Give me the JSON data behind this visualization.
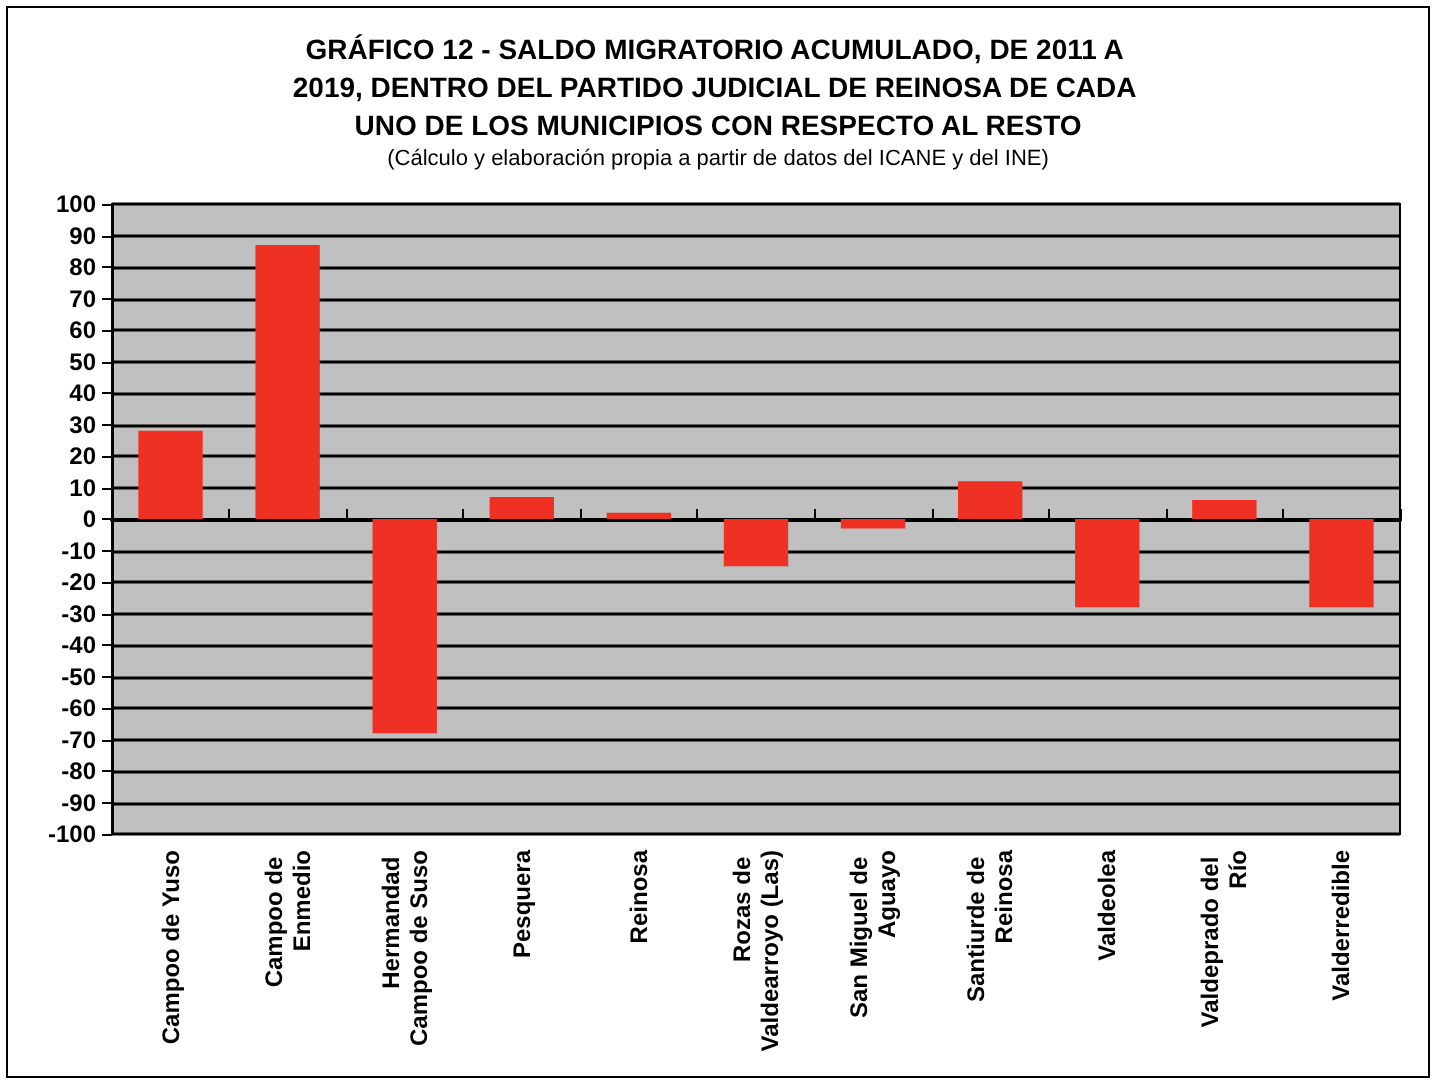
{
  "chart_data": {
    "type": "bar",
    "title": "GRÁFICO 12 - SALDO MIGRATORIO ACUMULADO, DE 2011 A 2019, DENTRO DEL PARTIDO JUDICIAL DE REINOSA DE CADA UNO DE LOS MUNICIPIOS CON RESPECTO AL RESTO",
    "subtitle": "(Cálculo y elaboración propia a partir de datos del ICANE y del INE)",
    "categories": [
      "Campoo de Yuso",
      "Campoo de Enmedio",
      "Hermandad Campoo de Suso",
      "Pesquera",
      "Reinosa",
      "Rozas de Valdearroyo (Las)",
      "San Miguel de Aguayo",
      "Santiurde de Reinosa",
      "Valdeolea",
      "Valdeprado del Río",
      "Valderredible"
    ],
    "values": [
      28,
      87,
      -68,
      7,
      2,
      -15,
      -3,
      12,
      -28,
      6,
      -28
    ],
    "color": "#ee3124",
    "ylim": [
      -100,
      100
    ],
    "yticks": [
      -100,
      -90,
      -80,
      -70,
      -60,
      -50,
      -40,
      -30,
      -20,
      -10,
      0,
      10,
      20,
      30,
      40,
      50,
      60,
      70,
      80,
      90,
      100
    ],
    "grid": "y"
  }
}
